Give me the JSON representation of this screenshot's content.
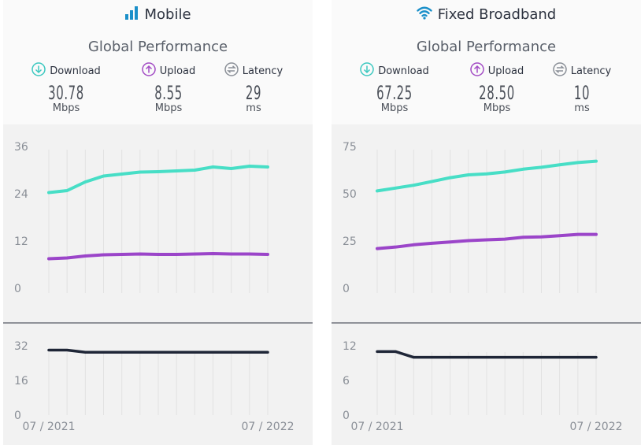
{
  "panels": [
    {
      "id": "mobile",
      "title": "Mobile",
      "title_icon": "signal-bars-icon",
      "subtitle": "Global Performance",
      "metrics": [
        {
          "label": "Download",
          "icon": "download-icon",
          "value": "30.78",
          "unit": "Mbps",
          "color": "#3cc8c0"
        },
        {
          "label": "Upload",
          "icon": "upload-icon",
          "value": "8.55",
          "unit": "Mbps",
          "color": "#a24bc4"
        },
        {
          "label": "Latency",
          "icon": "latency-icon",
          "value": "29",
          "unit": "ms",
          "color": "#8a8f97"
        }
      ]
    },
    {
      "id": "fixed",
      "title": "Fixed Broadband",
      "title_icon": "wifi-icon",
      "subtitle": "Global Performance",
      "metrics": [
        {
          "label": "Download",
          "icon": "download-icon",
          "value": "67.25",
          "unit": "Mbps",
          "color": "#3cc8c0"
        },
        {
          "label": "Upload",
          "icon": "upload-icon",
          "value": "28.50",
          "unit": "Mbps",
          "color": "#a24bc4"
        },
        {
          "label": "Latency",
          "icon": "latency-icon",
          "value": "10",
          "unit": "ms",
          "color": "#8a8f97"
        }
      ]
    }
  ],
  "colors": {
    "download": "#47dec6",
    "upload": "#9b45c9",
    "latency": "#1f2637",
    "accent": "#1a8fc9"
  },
  "chart_data": [
    {
      "type": "line",
      "panel": "mobile",
      "chart": "speed",
      "x_labels": [
        "07 / 2021",
        "07 / 2022"
      ],
      "x": [
        "2021-07",
        "2021-08",
        "2021-09",
        "2021-10",
        "2021-11",
        "2021-12",
        "2022-01",
        "2022-02",
        "2022-03",
        "2022-04",
        "2022-05",
        "2022-06",
        "2022-07"
      ],
      "ylim": [
        0,
        36
      ],
      "yticks": [
        0,
        12,
        24,
        36
      ],
      "series": [
        {
          "key": "download",
          "values": [
            24.3,
            24.8,
            27.0,
            28.5,
            29.0,
            29.5,
            29.6,
            29.8,
            30.0,
            30.8,
            30.4,
            31.0,
            30.8
          ]
        },
        {
          "key": "upload",
          "values": [
            7.5,
            7.7,
            8.2,
            8.5,
            8.6,
            8.7,
            8.6,
            8.6,
            8.7,
            8.8,
            8.7,
            8.7,
            8.6
          ]
        }
      ]
    },
    {
      "type": "line",
      "panel": "mobile",
      "chart": "latency",
      "x": [
        "2021-07",
        "2021-08",
        "2021-09",
        "2021-10",
        "2021-11",
        "2021-12",
        "2022-01",
        "2022-02",
        "2022-03",
        "2022-04",
        "2022-05",
        "2022-06",
        "2022-07"
      ],
      "ylim": [
        0,
        32
      ],
      "yticks": [
        0,
        16,
        32
      ],
      "series": [
        {
          "key": "latency",
          "values": [
            30,
            30,
            29,
            29,
            29,
            29,
            29,
            29,
            29,
            29,
            29,
            29,
            29
          ]
        }
      ]
    },
    {
      "type": "line",
      "panel": "fixed",
      "chart": "speed",
      "x_labels": [
        "07 / 2021",
        "07 / 2022"
      ],
      "x": [
        "2021-07",
        "2021-08",
        "2021-09",
        "2021-10",
        "2021-11",
        "2021-12",
        "2022-01",
        "2022-02",
        "2022-03",
        "2022-04",
        "2022-05",
        "2022-06",
        "2022-07"
      ],
      "ylim": [
        0,
        75
      ],
      "yticks": [
        0,
        25,
        50,
        75
      ],
      "series": [
        {
          "key": "download",
          "values": [
            51.5,
            53.0,
            54.5,
            56.5,
            58.5,
            60.0,
            60.5,
            61.5,
            63.0,
            64.0,
            65.3,
            66.5,
            67.25
          ]
        },
        {
          "key": "upload",
          "values": [
            21.0,
            21.8,
            23.0,
            23.8,
            24.5,
            25.2,
            25.6,
            26.0,
            27.0,
            27.2,
            27.8,
            28.5,
            28.5
          ]
        }
      ]
    },
    {
      "type": "line",
      "panel": "fixed",
      "chart": "latency",
      "x": [
        "2021-07",
        "2021-08",
        "2021-09",
        "2021-10",
        "2021-11",
        "2021-12",
        "2022-01",
        "2022-02",
        "2022-03",
        "2022-04",
        "2022-05",
        "2022-06",
        "2022-07"
      ],
      "ylim": [
        0,
        12
      ],
      "yticks": [
        0,
        6,
        12
      ],
      "series": [
        {
          "key": "latency",
          "values": [
            11,
            11,
            10,
            10,
            10,
            10,
            10,
            10,
            10,
            10,
            10,
            10,
            10
          ]
        }
      ]
    }
  ]
}
